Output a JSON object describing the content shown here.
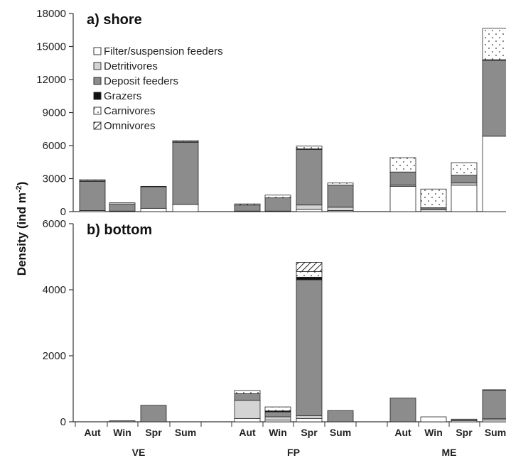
{
  "chart_data": {
    "type": "bar",
    "stacked": true,
    "ylabel": "Density (ind m",
    "ylabel_superscript": "-2",
    "ylabel_close": ")",
    "groups": [
      "VE",
      "FP",
      "ME"
    ],
    "categories": [
      "Aut",
      "Win",
      "Spr",
      "Sum",
      "Aut",
      "Win",
      "Spr",
      "Sum",
      "Aut",
      "Win",
      "Spr",
      "Sum"
    ],
    "legend": {
      "placement": "top-left",
      "entries": [
        "Filter/suspension feeders",
        "Detritivores",
        "Deposit feeders",
        "Grazers",
        "Carnivores",
        "Omnivores"
      ]
    },
    "series_styles": {
      "Filter/suspension feeders": "#ffffff",
      "Detritivores": "#d4d4d4",
      "Deposit feeders": "#8c8c8c",
      "Grazers": "#111111",
      "Carnivores": "dotted",
      "Omnivores": "hatched"
    },
    "panels": [
      {
        "title": "a) shore",
        "ylim": [
          0,
          18000
        ],
        "yticks": [
          "0",
          "3000",
          "6000",
          "9000",
          "12000",
          "15000",
          "18000"
        ],
        "series": [
          {
            "name": "Filter/suspension feeders",
            "values": [
              100,
              50,
              300,
              650,
              50,
              50,
              200,
              100,
              2300,
              150,
              2400,
              6850
            ]
          },
          {
            "name": "Detritivores",
            "values": [
              0,
              0,
              0,
              0,
              0,
              0,
              400,
              300,
              100,
              100,
              200,
              0
            ]
          },
          {
            "name": "Deposit feeders",
            "values": [
              2650,
              650,
              1950,
              5650,
              550,
              1200,
              5050,
              2000,
              1200,
              100,
              700,
              6900
            ]
          },
          {
            "name": "Grazers",
            "values": [
              50,
              0,
              0,
              50,
              0,
              0,
              50,
              0,
              0,
              0,
              0,
              50
            ]
          },
          {
            "name": "Carnivores",
            "values": [
              100,
              100,
              50,
              100,
              100,
              250,
              250,
              200,
              1300,
              1700,
              1150,
              2850
            ]
          },
          {
            "name": "Omnivores",
            "values": [
              0,
              0,
              0,
              0,
              0,
              0,
              0,
              0,
              0,
              0,
              0,
              0
            ]
          }
        ]
      },
      {
        "title": "b) bottom",
        "ylim": [
          0,
          6000
        ],
        "yticks": [
          "0",
          "2000",
          "4000",
          "6000"
        ],
        "series": [
          {
            "name": "Filter/suspension feeders",
            "values": [
              0,
              0,
              0,
              0,
              100,
              50,
              100,
              0,
              0,
              150,
              30,
              50
            ]
          },
          {
            "name": "Detritivores",
            "values": [
              0,
              0,
              0,
              0,
              550,
              100,
              80,
              0,
              0,
              0,
              0,
              40
            ]
          },
          {
            "name": "Deposit feeders",
            "values": [
              0,
              30,
              500,
              0,
              200,
              150,
              4120,
              340,
              720,
              0,
              50,
              870
            ]
          },
          {
            "name": "Grazers",
            "values": [
              0,
              0,
              0,
              0,
              0,
              30,
              80,
              0,
              0,
              0,
              0,
              10
            ]
          },
          {
            "name": "Carnivores",
            "values": [
              0,
              0,
              0,
              0,
              100,
              120,
              170,
              0,
              0,
              0,
              0,
              0
            ]
          },
          {
            "name": "Omnivores",
            "values": [
              0,
              0,
              0,
              0,
              0,
              0,
              280,
              0,
              0,
              0,
              0,
              0
            ]
          }
        ]
      }
    ]
  }
}
